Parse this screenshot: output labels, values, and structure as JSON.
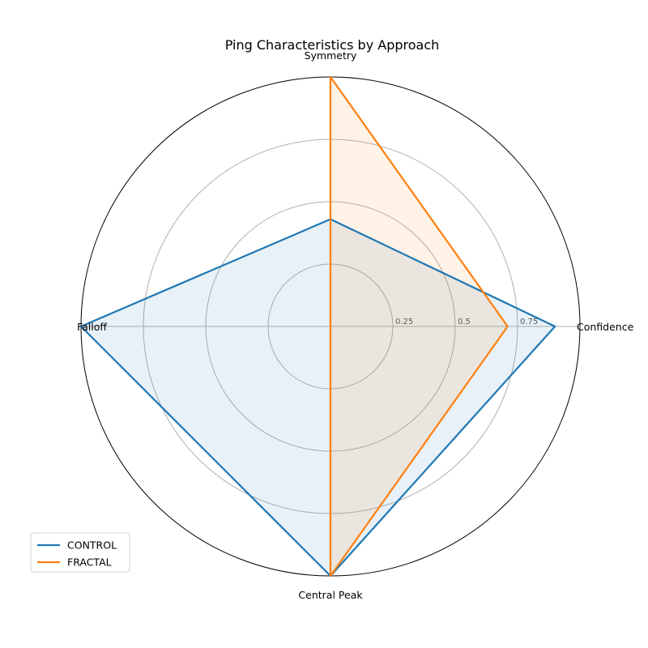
{
  "chart_data": {
    "type": "radar",
    "title": "Ping Characteristics by Approach",
    "axes": [
      "Confidence",
      "Symmetry",
      "Falloff",
      "Central Peak"
    ],
    "rlim": [
      0,
      1
    ],
    "r_ticks": [
      0.25,
      0.5,
      0.75
    ],
    "r_tick_labels": [
      "0.25",
      "0.5",
      "0.75"
    ],
    "grid": true,
    "legend_position": "lower-left",
    "series": [
      {
        "name": "CONTROL",
        "color": "#1f77b4",
        "values": [
          0.9,
          0.43,
          1.0,
          1.0
        ]
      },
      {
        "name": "FRACTAL",
        "color": "#ff7f0e",
        "values": [
          0.71,
          1.0,
          0.0,
          1.0
        ]
      }
    ]
  }
}
